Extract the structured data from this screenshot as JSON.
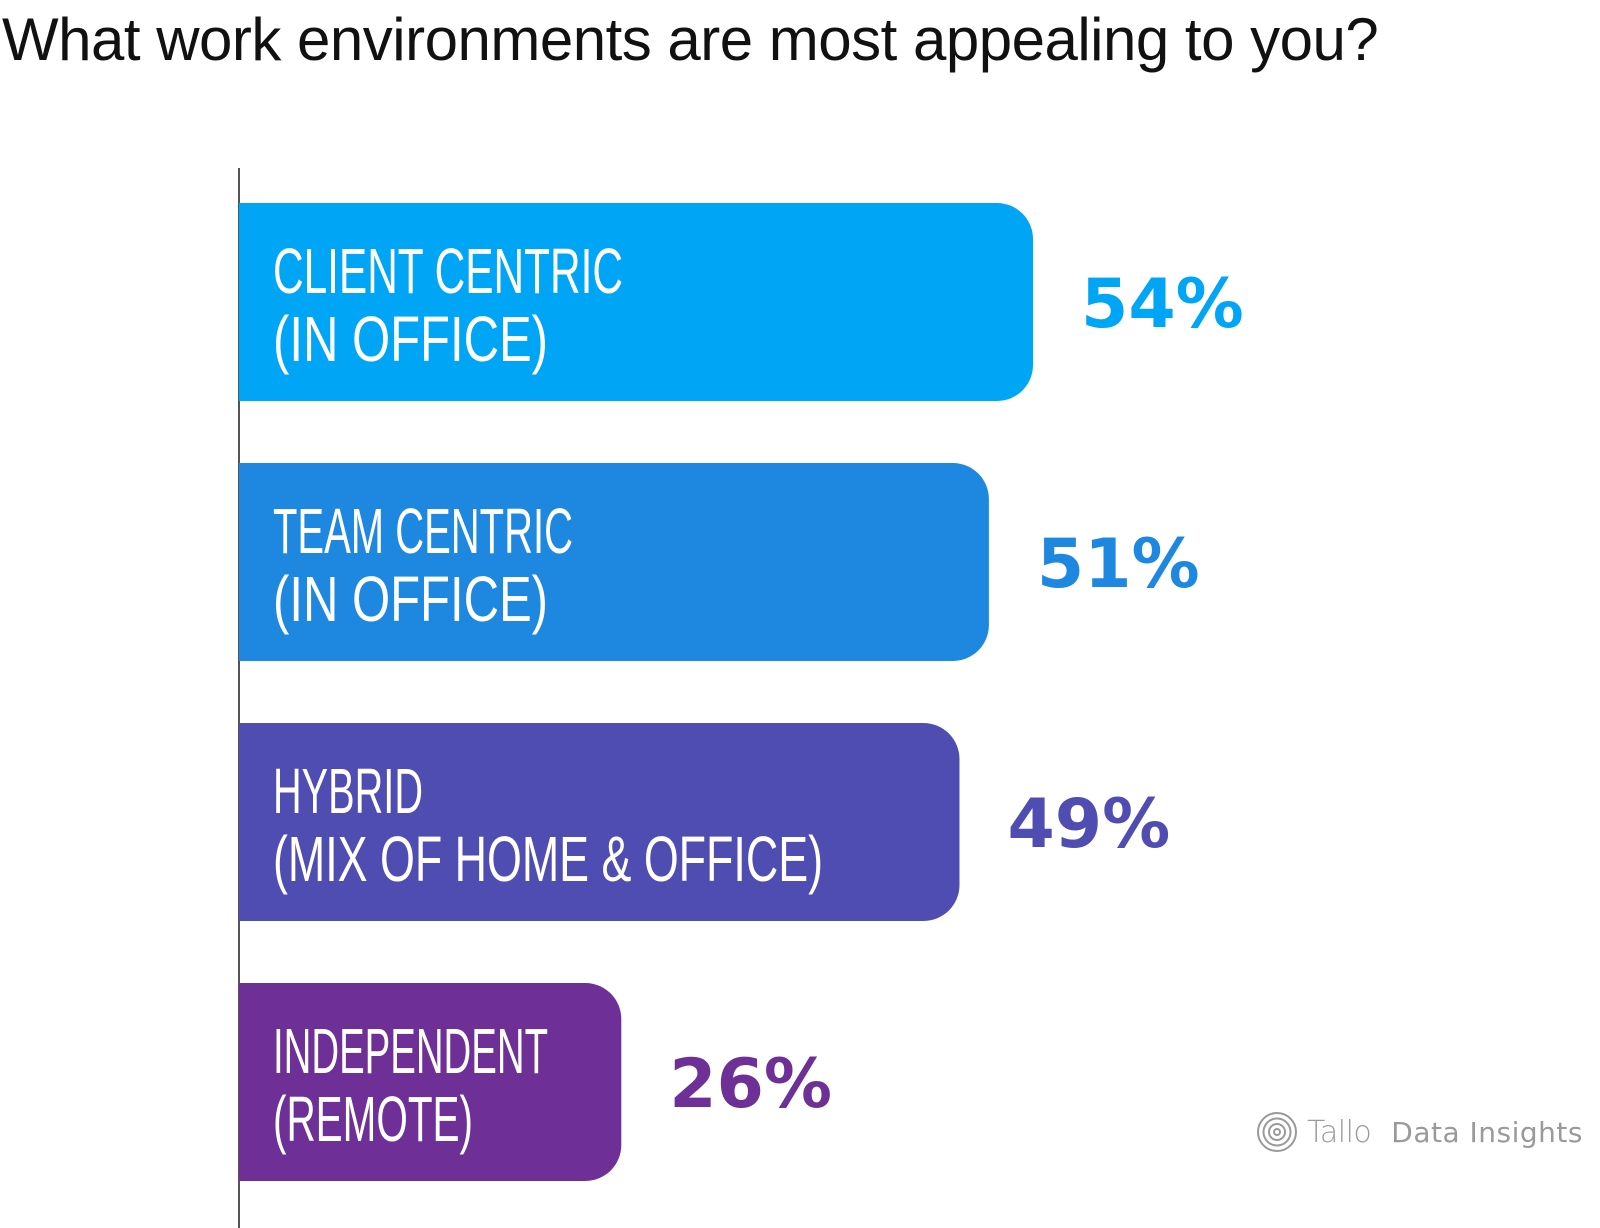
{
  "title": "What work environments are most appealing to you?",
  "chart_data": {
    "type": "bar",
    "orientation": "horizontal",
    "categories": [
      [
        "CLIENT CENTRIC",
        "(IN OFFICE)"
      ],
      [
        "TEAM CENTRIC",
        "(IN OFFICE)"
      ],
      [
        "HYBRID",
        "(MIX OF HOME & OFFICE)"
      ],
      [
        "INDEPENDENT",
        "(REMOTE)"
      ]
    ],
    "values": [
      54,
      51,
      49,
      26
    ],
    "value_labels": [
      "54%",
      "51%",
      "49%",
      "26%"
    ],
    "colors": [
      "#00A6F5",
      "#1E88E0",
      "#4F4DB2",
      "#6E2F96"
    ],
    "xlim": [
      0,
      100
    ],
    "grid": false,
    "legend": "none"
  },
  "watermark": {
    "brand": "Tallo",
    "tagline": "Data Insights",
    "icon": "tallo-fingerprint-logo"
  }
}
